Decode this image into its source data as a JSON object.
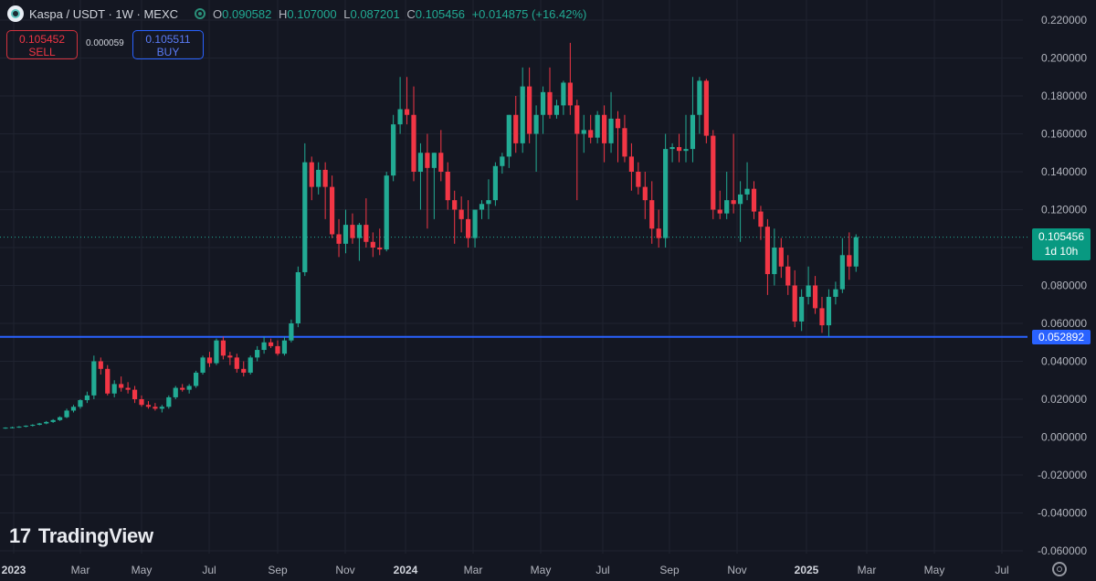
{
  "header": {
    "symbol": "Kaspa / USDT · 1W · MEXC",
    "o_label": "O",
    "o_value": "0.090582",
    "h_label": "H",
    "h_value": "0.107000",
    "l_label": "L",
    "l_value": "0.087201",
    "c_label": "C",
    "c_value": "0.105456",
    "change": "+0.014875 (+16.42%)"
  },
  "trade": {
    "sell_price": "0.105452",
    "sell_label": "SELL",
    "spread": "0.000059",
    "buy_price": "0.105511",
    "buy_label": "BUY"
  },
  "last_price_tag": {
    "price": "0.105456",
    "countdown": "1d 10h"
  },
  "horizontal_line_tag": "0.052892",
  "brand": "TradingView",
  "colors": {
    "up": "#22ab94",
    "down": "#f23645",
    "line": "#2962ff",
    "background": "#141722",
    "grid": "#1f2330"
  },
  "chart_data": {
    "type": "candlestick",
    "interval": "1W",
    "ylim": [
      -0.06,
      0.22
    ],
    "y_ticks": [
      "0.220000",
      "0.200000",
      "0.180000",
      "0.160000",
      "0.140000",
      "0.120000",
      "0.100000",
      "0.080000",
      "0.060000",
      "0.040000",
      "0.020000",
      "0.000000",
      "-0.020000",
      "-0.040000",
      "-0.060000"
    ],
    "x_ticks": [
      "2023",
      "Mar",
      "May",
      "Jul",
      "Sep",
      "Nov",
      "2024",
      "Mar",
      "May",
      "Jul",
      "Sep",
      "Nov",
      "2025",
      "Mar",
      "May",
      "Jul"
    ],
    "horizontal_line": 0.052892,
    "last_price": 0.105456,
    "candles": [
      {
        "o": 0.0048,
        "h": 0.0052,
        "l": 0.0044,
        "c": 0.005
      },
      {
        "o": 0.005,
        "h": 0.0055,
        "l": 0.0046,
        "c": 0.0052
      },
      {
        "o": 0.0052,
        "h": 0.0058,
        "l": 0.0049,
        "c": 0.0055
      },
      {
        "o": 0.0055,
        "h": 0.0062,
        "l": 0.0052,
        "c": 0.006
      },
      {
        "o": 0.006,
        "h": 0.0068,
        "l": 0.0056,
        "c": 0.0065
      },
      {
        "o": 0.0065,
        "h": 0.0075,
        "l": 0.0062,
        "c": 0.0072
      },
      {
        "o": 0.0072,
        "h": 0.0085,
        "l": 0.0068,
        "c": 0.008
      },
      {
        "o": 0.008,
        "h": 0.0095,
        "l": 0.0075,
        "c": 0.009
      },
      {
        "o": 0.009,
        "h": 0.011,
        "l": 0.0085,
        "c": 0.0105
      },
      {
        "o": 0.0105,
        "h": 0.015,
        "l": 0.01,
        "c": 0.014
      },
      {
        "o": 0.014,
        "h": 0.017,
        "l": 0.013,
        "c": 0.016
      },
      {
        "o": 0.016,
        "h": 0.02,
        "l": 0.015,
        "c": 0.0195
      },
      {
        "o": 0.0195,
        "h": 0.024,
        "l": 0.018,
        "c": 0.022
      },
      {
        "o": 0.022,
        "h": 0.043,
        "l": 0.02,
        "c": 0.04
      },
      {
        "o": 0.04,
        "h": 0.042,
        "l": 0.033,
        "c": 0.036
      },
      {
        "o": 0.036,
        "h": 0.038,
        "l": 0.022,
        "c": 0.023
      },
      {
        "o": 0.023,
        "h": 0.03,
        "l": 0.021,
        "c": 0.028
      },
      {
        "o": 0.028,
        "h": 0.032,
        "l": 0.024,
        "c": 0.026
      },
      {
        "o": 0.026,
        "h": 0.029,
        "l": 0.023,
        "c": 0.025
      },
      {
        "o": 0.025,
        "h": 0.027,
        "l": 0.018,
        "c": 0.02
      },
      {
        "o": 0.02,
        "h": 0.022,
        "l": 0.016,
        "c": 0.017
      },
      {
        "o": 0.017,
        "h": 0.019,
        "l": 0.015,
        "c": 0.016
      },
      {
        "o": 0.016,
        "h": 0.018,
        "l": 0.014,
        "c": 0.015
      },
      {
        "o": 0.015,
        "h": 0.017,
        "l": 0.013,
        "c": 0.016
      },
      {
        "o": 0.016,
        "h": 0.022,
        "l": 0.015,
        "c": 0.021
      },
      {
        "o": 0.021,
        "h": 0.027,
        "l": 0.02,
        "c": 0.026
      },
      {
        "o": 0.026,
        "h": 0.028,
        "l": 0.024,
        "c": 0.025
      },
      {
        "o": 0.025,
        "h": 0.028,
        "l": 0.023,
        "c": 0.027
      },
      {
        "o": 0.027,
        "h": 0.035,
        "l": 0.026,
        "c": 0.034
      },
      {
        "o": 0.034,
        "h": 0.043,
        "l": 0.033,
        "c": 0.042
      },
      {
        "o": 0.042,
        "h": 0.045,
        "l": 0.037,
        "c": 0.039
      },
      {
        "o": 0.039,
        "h": 0.052,
        "l": 0.038,
        "c": 0.051
      },
      {
        "o": 0.051,
        "h": 0.053,
        "l": 0.041,
        "c": 0.043
      },
      {
        "o": 0.043,
        "h": 0.045,
        "l": 0.038,
        "c": 0.042
      },
      {
        "o": 0.042,
        "h": 0.044,
        "l": 0.034,
        "c": 0.036
      },
      {
        "o": 0.036,
        "h": 0.04,
        "l": 0.032,
        "c": 0.034
      },
      {
        "o": 0.034,
        "h": 0.043,
        "l": 0.033,
        "c": 0.042
      },
      {
        "o": 0.042,
        "h": 0.048,
        "l": 0.04,
        "c": 0.046
      },
      {
        "o": 0.046,
        "h": 0.053,
        "l": 0.044,
        "c": 0.05
      },
      {
        "o": 0.05,
        "h": 0.052,
        "l": 0.047,
        "c": 0.048
      },
      {
        "o": 0.048,
        "h": 0.051,
        "l": 0.043,
        "c": 0.044
      },
      {
        "o": 0.044,
        "h": 0.053,
        "l": 0.043,
        "c": 0.051
      },
      {
        "o": 0.051,
        "h": 0.062,
        "l": 0.05,
        "c": 0.06
      },
      {
        "o": 0.06,
        "h": 0.09,
        "l": 0.058,
        "c": 0.087
      },
      {
        "o": 0.087,
        "h": 0.155,
        "l": 0.085,
        "c": 0.145
      },
      {
        "o": 0.145,
        "h": 0.148,
        "l": 0.125,
        "c": 0.132
      },
      {
        "o": 0.132,
        "h": 0.145,
        "l": 0.128,
        "c": 0.141
      },
      {
        "o": 0.141,
        "h": 0.145,
        "l": 0.115,
        "c": 0.132
      },
      {
        "o": 0.132,
        "h": 0.138,
        "l": 0.105,
        "c": 0.107
      },
      {
        "o": 0.107,
        "h": 0.115,
        "l": 0.095,
        "c": 0.102
      },
      {
        "o": 0.102,
        "h": 0.12,
        "l": 0.097,
        "c": 0.112
      },
      {
        "o": 0.112,
        "h": 0.118,
        "l": 0.102,
        "c": 0.105
      },
      {
        "o": 0.105,
        "h": 0.113,
        "l": 0.093,
        "c": 0.112
      },
      {
        "o": 0.112,
        "h": 0.126,
        "l": 0.1,
        "c": 0.103
      },
      {
        "o": 0.103,
        "h": 0.108,
        "l": 0.095,
        "c": 0.1
      },
      {
        "o": 0.1,
        "h": 0.11,
        "l": 0.096,
        "c": 0.099
      },
      {
        "o": 0.099,
        "h": 0.14,
        "l": 0.098,
        "c": 0.138
      },
      {
        "o": 0.138,
        "h": 0.17,
        "l": 0.135,
        "c": 0.165
      },
      {
        "o": 0.165,
        "h": 0.19,
        "l": 0.16,
        "c": 0.173
      },
      {
        "o": 0.173,
        "h": 0.19,
        "l": 0.165,
        "c": 0.17
      },
      {
        "o": 0.17,
        "h": 0.185,
        "l": 0.135,
        "c": 0.14
      },
      {
        "o": 0.14,
        "h": 0.155,
        "l": 0.12,
        "c": 0.15
      },
      {
        "o": 0.15,
        "h": 0.16,
        "l": 0.11,
        "c": 0.142
      },
      {
        "o": 0.142,
        "h": 0.15,
        "l": 0.115,
        "c": 0.15
      },
      {
        "o": 0.15,
        "h": 0.162,
        "l": 0.135,
        "c": 0.14
      },
      {
        "o": 0.14,
        "h": 0.145,
        "l": 0.12,
        "c": 0.125
      },
      {
        "o": 0.125,
        "h": 0.13,
        "l": 0.102,
        "c": 0.12
      },
      {
        "o": 0.12,
        "h": 0.127,
        "l": 0.108,
        "c": 0.115
      },
      {
        "o": 0.115,
        "h": 0.125,
        "l": 0.1,
        "c": 0.105
      },
      {
        "o": 0.105,
        "h": 0.12,
        "l": 0.1,
        "c": 0.12
      },
      {
        "o": 0.12,
        "h": 0.125,
        "l": 0.115,
        "c": 0.123
      },
      {
        "o": 0.123,
        "h": 0.136,
        "l": 0.115,
        "c": 0.125
      },
      {
        "o": 0.125,
        "h": 0.145,
        "l": 0.122,
        "c": 0.143
      },
      {
        "o": 0.143,
        "h": 0.15,
        "l": 0.139,
        "c": 0.148
      },
      {
        "o": 0.148,
        "h": 0.17,
        "l": 0.142,
        "c": 0.17
      },
      {
        "o": 0.17,
        "h": 0.18,
        "l": 0.15,
        "c": 0.155
      },
      {
        "o": 0.155,
        "h": 0.195,
        "l": 0.15,
        "c": 0.185
      },
      {
        "o": 0.185,
        "h": 0.195,
        "l": 0.155,
        "c": 0.16
      },
      {
        "o": 0.16,
        "h": 0.175,
        "l": 0.14,
        "c": 0.17
      },
      {
        "o": 0.17,
        "h": 0.185,
        "l": 0.16,
        "c": 0.182
      },
      {
        "o": 0.182,
        "h": 0.195,
        "l": 0.168,
        "c": 0.17
      },
      {
        "o": 0.17,
        "h": 0.178,
        "l": 0.168,
        "c": 0.175
      },
      {
        "o": 0.175,
        "h": 0.188,
        "l": 0.17,
        "c": 0.187
      },
      {
        "o": 0.187,
        "h": 0.208,
        "l": 0.17,
        "c": 0.175
      },
      {
        "o": 0.175,
        "h": 0.178,
        "l": 0.125,
        "c": 0.16
      },
      {
        "o": 0.16,
        "h": 0.17,
        "l": 0.15,
        "c": 0.162
      },
      {
        "o": 0.162,
        "h": 0.17,
        "l": 0.155,
        "c": 0.158
      },
      {
        "o": 0.158,
        "h": 0.172,
        "l": 0.155,
        "c": 0.17
      },
      {
        "o": 0.17,
        "h": 0.175,
        "l": 0.145,
        "c": 0.155
      },
      {
        "o": 0.155,
        "h": 0.182,
        "l": 0.15,
        "c": 0.168
      },
      {
        "o": 0.168,
        "h": 0.172,
        "l": 0.145,
        "c": 0.163
      },
      {
        "o": 0.163,
        "h": 0.17,
        "l": 0.145,
        "c": 0.148
      },
      {
        "o": 0.148,
        "h": 0.155,
        "l": 0.13,
        "c": 0.14
      },
      {
        "o": 0.14,
        "h": 0.145,
        "l": 0.128,
        "c": 0.132
      },
      {
        "o": 0.132,
        "h": 0.14,
        "l": 0.115,
        "c": 0.125
      },
      {
        "o": 0.125,
        "h": 0.135,
        "l": 0.102,
        "c": 0.11
      },
      {
        "o": 0.11,
        "h": 0.12,
        "l": 0.1,
        "c": 0.105
      },
      {
        "o": 0.105,
        "h": 0.16,
        "l": 0.1,
        "c": 0.152
      },
      {
        "o": 0.152,
        "h": 0.155,
        "l": 0.145,
        "c": 0.153
      },
      {
        "o": 0.153,
        "h": 0.16,
        "l": 0.145,
        "c": 0.151
      },
      {
        "o": 0.151,
        "h": 0.17,
        "l": 0.145,
        "c": 0.152
      },
      {
        "o": 0.152,
        "h": 0.19,
        "l": 0.145,
        "c": 0.17
      },
      {
        "o": 0.17,
        "h": 0.19,
        "l": 0.16,
        "c": 0.188
      },
      {
        "o": 0.188,
        "h": 0.189,
        "l": 0.155,
        "c": 0.159
      },
      {
        "o": 0.159,
        "h": 0.162,
        "l": 0.115,
        "c": 0.12
      },
      {
        "o": 0.12,
        "h": 0.13,
        "l": 0.115,
        "c": 0.118
      },
      {
        "o": 0.118,
        "h": 0.14,
        "l": 0.115,
        "c": 0.125
      },
      {
        "o": 0.125,
        "h": 0.16,
        "l": 0.118,
        "c": 0.123
      },
      {
        "o": 0.123,
        "h": 0.135,
        "l": 0.103,
        "c": 0.128
      },
      {
        "o": 0.128,
        "h": 0.145,
        "l": 0.125,
        "c": 0.131
      },
      {
        "o": 0.131,
        "h": 0.135,
        "l": 0.115,
        "c": 0.119
      },
      {
        "o": 0.119,
        "h": 0.122,
        "l": 0.104,
        "c": 0.111
      },
      {
        "o": 0.111,
        "h": 0.115,
        "l": 0.075,
        "c": 0.086
      },
      {
        "o": 0.086,
        "h": 0.11,
        "l": 0.08,
        "c": 0.1
      },
      {
        "o": 0.1,
        "h": 0.105,
        "l": 0.084,
        "c": 0.09
      },
      {
        "o": 0.09,
        "h": 0.096,
        "l": 0.075,
        "c": 0.08
      },
      {
        "o": 0.08,
        "h": 0.088,
        "l": 0.058,
        "c": 0.061
      },
      {
        "o": 0.061,
        "h": 0.078,
        "l": 0.056,
        "c": 0.074
      },
      {
        "o": 0.074,
        "h": 0.09,
        "l": 0.07,
        "c": 0.08
      },
      {
        "o": 0.08,
        "h": 0.085,
        "l": 0.065,
        "c": 0.068
      },
      {
        "o": 0.068,
        "h": 0.074,
        "l": 0.055,
        "c": 0.059
      },
      {
        "o": 0.059,
        "h": 0.078,
        "l": 0.053,
        "c": 0.074
      },
      {
        "o": 0.074,
        "h": 0.082,
        "l": 0.07,
        "c": 0.078
      },
      {
        "o": 0.078,
        "h": 0.105,
        "l": 0.076,
        "c": 0.096
      },
      {
        "o": 0.096,
        "h": 0.108,
        "l": 0.083,
        "c": 0.09
      },
      {
        "o": 0.09,
        "h": 0.107,
        "l": 0.0872,
        "c": 0.1055
      }
    ]
  }
}
